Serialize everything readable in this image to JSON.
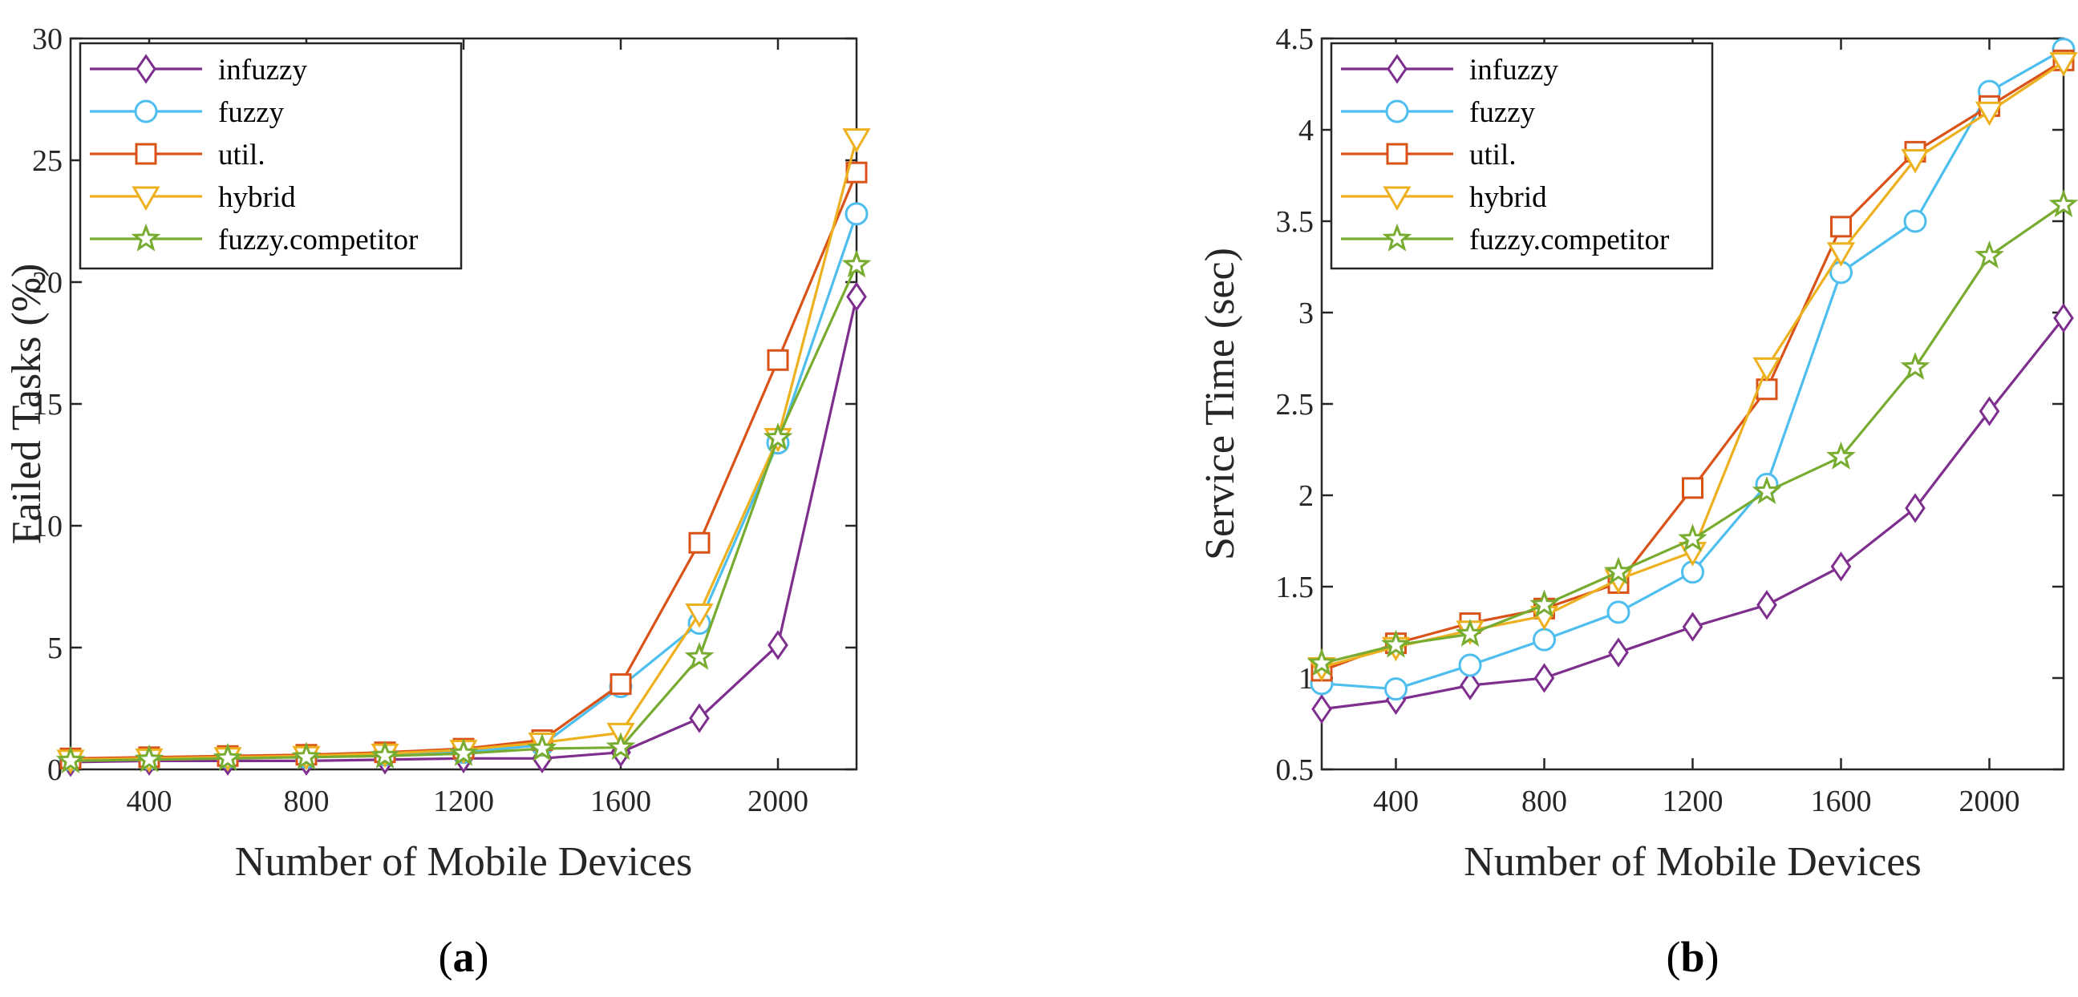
{
  "chart_data": [
    {
      "type": "line",
      "caption": {
        "open": "(",
        "letter": "a",
        "close": ")"
      },
      "xlabel": "Number of Mobile Devices",
      "ylabel": "Failed Tasks (%)",
      "xlim": [
        200,
        2200
      ],
      "ylim": [
        0,
        30
      ],
      "xticks": [
        400,
        800,
        1200,
        1600,
        2000
      ],
      "xtick_labels": [
        "400",
        "800",
        "1200",
        "1600",
        "2000"
      ],
      "yticks": [
        0,
        5,
        10,
        15,
        20,
        25,
        30
      ],
      "ytick_labels": [
        "0",
        "5",
        "10",
        "15",
        "20",
        "25",
        "30"
      ],
      "legend_position": "top-left",
      "x": [
        200,
        400,
        600,
        800,
        1000,
        1200,
        1400,
        1600,
        1800,
        2000,
        2200
      ],
      "series": [
        {
          "name": "infuzzy",
          "color": "#7E2F8E",
          "marker": "diamond",
          "values": [
            0.3,
            0.35,
            0.35,
            0.35,
            0.4,
            0.45,
            0.45,
            0.7,
            2.1,
            5.1,
            19.4
          ]
        },
        {
          "name": "fuzzy",
          "color": "#4DBEEE",
          "marker": "circle",
          "values": [
            0.4,
            0.45,
            0.5,
            0.5,
            0.6,
            0.7,
            1.0,
            3.4,
            6.0,
            13.4,
            22.8
          ]
        },
        {
          "name": "util.",
          "color": "#D95319",
          "marker": "square",
          "values": [
            0.45,
            0.5,
            0.55,
            0.6,
            0.7,
            0.85,
            1.2,
            3.5,
            9.3,
            16.8,
            24.5
          ]
        },
        {
          "name": "hybrid",
          "color": "#EDB120",
          "marker": "triangle-down",
          "values": [
            0.4,
            0.45,
            0.5,
            0.55,
            0.65,
            0.8,
            1.1,
            1.5,
            6.4,
            13.6,
            25.9
          ]
        },
        {
          "name": "fuzzy.competitor",
          "color": "#77AC30",
          "marker": "star",
          "values": [
            0.35,
            0.4,
            0.45,
            0.5,
            0.55,
            0.65,
            0.85,
            0.9,
            4.6,
            13.6,
            20.7
          ]
        }
      ]
    },
    {
      "type": "line",
      "caption": {
        "open": "(",
        "letter": "b",
        "close": ")"
      },
      "xlabel": "Number of Mobile Devices",
      "ylabel": "Service Time (sec)",
      "xlim": [
        200,
        2200
      ],
      "ylim": [
        0.5,
        4.5
      ],
      "xticks": [
        400,
        800,
        1200,
        1600,
        2000
      ],
      "xtick_labels": [
        "400",
        "800",
        "1200",
        "1600",
        "2000"
      ],
      "yticks": [
        0.5,
        1,
        1.5,
        2,
        2.5,
        3,
        3.5,
        4,
        4.5
      ],
      "ytick_labels": [
        "0.5",
        "1",
        "1.5",
        "2",
        "2.5",
        "3",
        "3.5",
        "4",
        "4.5"
      ],
      "legend_position": "top-left",
      "x": [
        200,
        400,
        600,
        800,
        1000,
        1200,
        1400,
        1600,
        1800,
        2000,
        2200
      ],
      "series": [
        {
          "name": "infuzzy",
          "color": "#7E2F8E",
          "marker": "diamond",
          "values": [
            0.83,
            0.88,
            0.96,
            1.0,
            1.14,
            1.28,
            1.4,
            1.61,
            1.93,
            2.46,
            2.97
          ]
        },
        {
          "name": "fuzzy",
          "color": "#4DBEEE",
          "marker": "circle",
          "values": [
            0.97,
            0.94,
            1.07,
            1.21,
            1.36,
            1.58,
            2.06,
            3.22,
            3.5,
            4.21,
            4.44
          ]
        },
        {
          "name": "util.",
          "color": "#D95319",
          "marker": "square",
          "values": [
            1.04,
            1.19,
            1.3,
            1.38,
            1.52,
            2.04,
            2.58,
            3.47,
            3.88,
            4.13,
            4.38
          ]
        },
        {
          "name": "hybrid",
          "color": "#EDB120",
          "marker": "triangle-down",
          "values": [
            1.06,
            1.17,
            1.26,
            1.34,
            1.54,
            1.69,
            2.7,
            3.33,
            3.84,
            4.1,
            4.37
          ]
        },
        {
          "name": "fuzzy.competitor",
          "color": "#77AC30",
          "marker": "star",
          "values": [
            1.08,
            1.18,
            1.24,
            1.4,
            1.58,
            1.76,
            2.02,
            2.21,
            2.7,
            3.31,
            3.59
          ]
        }
      ]
    }
  ]
}
